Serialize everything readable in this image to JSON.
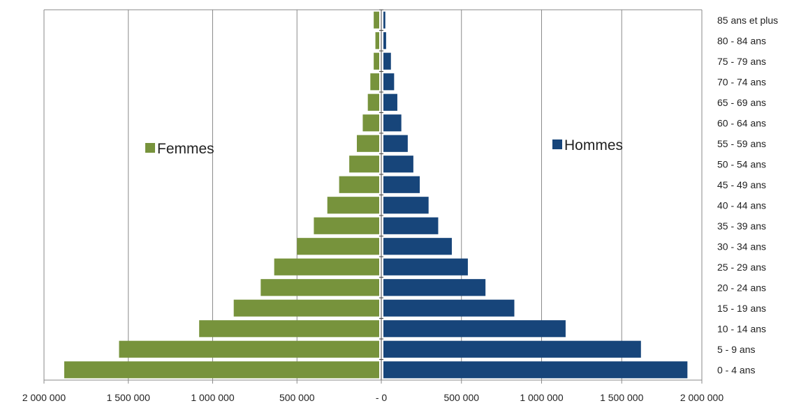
{
  "chart_data": {
    "type": "bar",
    "orientation": "horizontal",
    "layout": "population-pyramid",
    "categories": [
      "0 - 4 ans",
      "5 - 9 ans",
      "10 - 14 ans",
      "15 - 19 ans",
      "20 - 24 ans",
      "25 - 29 ans",
      "30 - 34 ans",
      "35 - 39 ans",
      "40 - 44 ans",
      "45 - 49 ans",
      "50 - 54 ans",
      "55 - 59 ans",
      "60 - 64 ans",
      "65 - 69 ans",
      "70 - 74 ans",
      "75 - 79 ans",
      "80 - 84 ans",
      "85  ans et plus"
    ],
    "series": [
      {
        "name": "Femmes",
        "side": "left",
        "color": "#77933C",
        "values": [
          1880000,
          1555000,
          1080000,
          875000,
          715000,
          635000,
          500000,
          400000,
          320000,
          250000,
          190000,
          145000,
          110000,
          80000,
          65000,
          45000,
          35000,
          45000
        ]
      },
      {
        "name": "Hommes",
        "side": "right",
        "color": "#17457A",
        "values": [
          1910000,
          1620000,
          1150000,
          830000,
          650000,
          540000,
          440000,
          355000,
          295000,
          240000,
          200000,
          165000,
          125000,
          100000,
          80000,
          60000,
          30000,
          25000
        ]
      }
    ],
    "xlim": [
      -2000000,
      2000000
    ],
    "xticks": [
      {
        "value": -2000000,
        "label": "2 000 000"
      },
      {
        "value": -1500000,
        "label": "1 500 000"
      },
      {
        "value": -1000000,
        "label": "1 000 000"
      },
      {
        "value": -500000,
        "label": "500 000"
      },
      {
        "value": 0,
        "label": "- 0"
      },
      {
        "value": 500000,
        "label": "500 000"
      },
      {
        "value": 1000000,
        "label": "1 000 000"
      },
      {
        "value": 1500000,
        "label": "1 500 000"
      },
      {
        "value": 2000000,
        "label": "2 000 000"
      }
    ],
    "grid": true,
    "legend": [
      {
        "name": "Femmes",
        "placement": "upper-left"
      },
      {
        "name": "Hommes",
        "placement": "upper-right"
      }
    ]
  }
}
